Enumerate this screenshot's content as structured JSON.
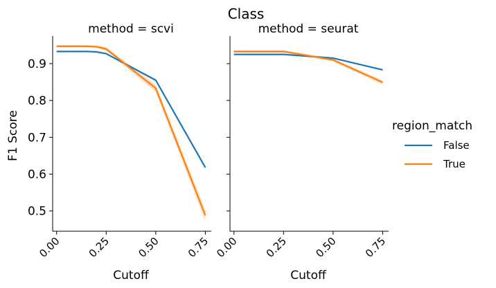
{
  "chart_data": {
    "type": "line",
    "title": "Class",
    "ylabel": "F1 Score",
    "ylim": [
      0.445,
      0.975
    ],
    "yticks": [
      0.5,
      0.6,
      0.7,
      0.8,
      0.9
    ],
    "ytick_labels": [
      "0.5",
      "0.6",
      "0.7",
      "0.8",
      "0.9"
    ],
    "xlim": [
      -0.02,
      0.78
    ],
    "xticks": [
      0.0,
      0.25,
      0.5,
      0.75
    ],
    "xtick_labels": [
      "0.00",
      "0.25",
      "0.50",
      "0.75"
    ],
    "legend": {
      "title": "region_match",
      "position": "right"
    },
    "panels": [
      {
        "title": "method = scvi",
        "xlabel": "Cutoff",
        "series": [
          {
            "name": "False",
            "color": "#1f77b4",
            "x": [
              0.0,
              0.05,
              0.1,
              0.15,
              0.2,
              0.25,
              0.5,
              0.75
            ],
            "y": [
              0.933,
              0.933,
              0.933,
              0.933,
              0.932,
              0.927,
              0.855,
              0.618
            ],
            "ci": [
              0.002,
              0.002,
              0.002,
              0.002,
              0.002,
              0.002,
              0.003,
              0.004
            ]
          },
          {
            "name": "True",
            "color": "#ff7f0e",
            "x": [
              0.0,
              0.05,
              0.1,
              0.15,
              0.2,
              0.25,
              0.5,
              0.75
            ],
            "y": [
              0.947,
              0.947,
              0.947,
              0.947,
              0.946,
              0.94,
              0.833,
              0.488
            ],
            "ci": [
              0.003,
              0.003,
              0.003,
              0.003,
              0.003,
              0.005,
              0.01,
              0.015
            ]
          }
        ]
      },
      {
        "title": "method = seurat",
        "xlabel": "Cutoff",
        "series": [
          {
            "name": "False",
            "color": "#1f77b4",
            "x": [
              0.0,
              0.25,
              0.5,
              0.75
            ],
            "y": [
              0.925,
              0.925,
              0.915,
              0.883
            ],
            "ci": [
              0.002,
              0.002,
              0.002,
              0.002
            ]
          },
          {
            "name": "True",
            "color": "#ff7f0e",
            "x": [
              0.0,
              0.25,
              0.5,
              0.75
            ],
            "y": [
              0.933,
              0.933,
              0.91,
              0.849
            ],
            "ci": [
              0.003,
              0.003,
              0.004,
              0.006
            ]
          }
        ]
      }
    ]
  }
}
